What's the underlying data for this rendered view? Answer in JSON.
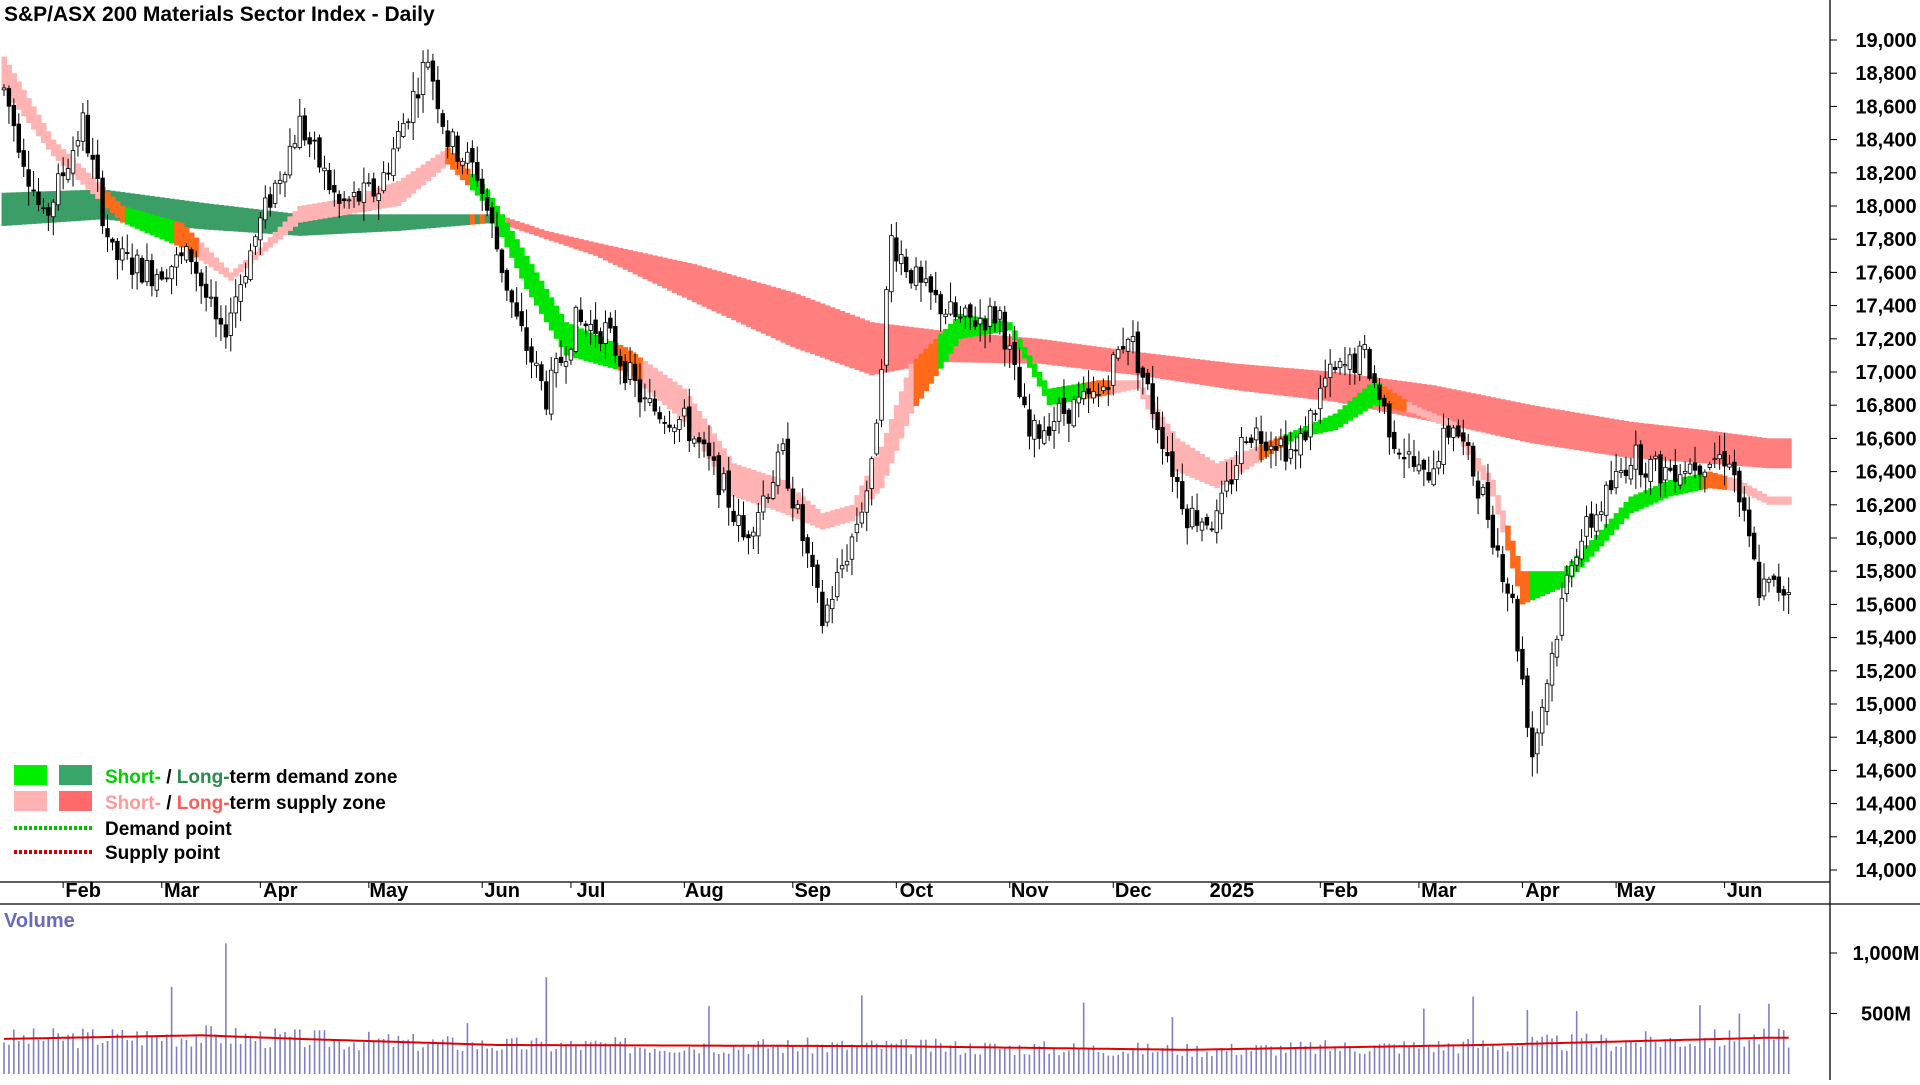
{
  "chart_data": {
    "type": "candlestick",
    "title": "S&P/ASX 200 Materials Sector Index - Daily",
    "y_axis": {
      "ylim": [
        13900,
        19250
      ],
      "ticks": [
        14000,
        14200,
        14400,
        14600,
        14800,
        15000,
        15200,
        15400,
        15600,
        15800,
        16000,
        16200,
        16400,
        16600,
        16800,
        17000,
        17200,
        17400,
        17600,
        17800,
        18000,
        18200,
        18400,
        18600,
        18800,
        19000
      ],
      "tick_labels": [
        "14,000",
        "14,200",
        "14,400",
        "14,600",
        "14,800",
        "15,000",
        "15,200",
        "15,400",
        "15,600",
        "15,800",
        "16,000",
        "16,200",
        "16,400",
        "16,600",
        "16,800",
        "17,000",
        "17,200",
        "17,400",
        "17,600",
        "17,800",
        "18,000",
        "18,200",
        "18,400",
        "18,600",
        "18,800",
        "19,000"
      ]
    },
    "x_axis": {
      "months": [
        "Feb",
        "Mar",
        "Apr",
        "May",
        "Jun",
        "Jul",
        "Aug",
        "Sep",
        "Oct",
        "Nov",
        "Dec",
        "2025",
        "Feb",
        "Mar",
        "Apr",
        "May",
        "Jun"
      ],
      "month_start_day": [
        12,
        32,
        52,
        74,
        97,
        115,
        138,
        160,
        181,
        204,
        225,
        245,
        267,
        287,
        308,
        327,
        349
      ]
    },
    "total_days": 363,
    "price_path": [
      [
        0,
        18700
      ],
      [
        8,
        17900
      ],
      [
        16,
        18500
      ],
      [
        22,
        17700
      ],
      [
        30,
        17600
      ],
      [
        38,
        17700
      ],
      [
        44,
        17200
      ],
      [
        52,
        17900
      ],
      [
        60,
        18500
      ],
      [
        68,
        18000
      ],
      [
        76,
        18100
      ],
      [
        86,
        18900
      ],
      [
        90,
        18400
      ],
      [
        96,
        18200
      ],
      [
        104,
        17300
      ],
      [
        110,
        16850
      ],
      [
        116,
        17300
      ],
      [
        122,
        17250
      ],
      [
        130,
        16800
      ],
      [
        138,
        16700
      ],
      [
        146,
        16300
      ],
      [
        150,
        16000
      ],
      [
        158,
        16500
      ],
      [
        166,
        15500
      ],
      [
        172,
        16000
      ],
      [
        176,
        16400
      ],
      [
        180,
        17800
      ],
      [
        186,
        17500
      ],
      [
        194,
        17300
      ],
      [
        202,
        17350
      ],
      [
        208,
        16600
      ],
      [
        214,
        16750
      ],
      [
        222,
        16850
      ],
      [
        228,
        17250
      ],
      [
        234,
        16700
      ],
      [
        240,
        16150
      ],
      [
        246,
        16100
      ],
      [
        252,
        16650
      ],
      [
        258,
        16600
      ],
      [
        262,
        16500
      ],
      [
        268,
        16950
      ],
      [
        276,
        17100
      ],
      [
        282,
        16600
      ],
      [
        288,
        16350
      ],
      [
        294,
        16700
      ],
      [
        300,
        16250
      ],
      [
        306,
        15600
      ],
      [
        310,
        14700
      ],
      [
        314,
        15300
      ],
      [
        318,
        15900
      ],
      [
        324,
        16200
      ],
      [
        330,
        16500
      ],
      [
        336,
        16400
      ],
      [
        342,
        16450
      ],
      [
        350,
        16500
      ],
      [
        353,
        16100
      ],
      [
        356,
        15700
      ],
      [
        358,
        15700
      ]
    ],
    "short_term_zone": {
      "upper": [
        [
          0,
          18900
        ],
        [
          10,
          18400
        ],
        [
          24,
          18000
        ],
        [
          36,
          17900
        ],
        [
          46,
          17600
        ],
        [
          52,
          17750
        ],
        [
          60,
          18000
        ],
        [
          70,
          18050
        ],
        [
          80,
          18150
        ],
        [
          90,
          18350
        ],
        [
          98,
          18100
        ],
        [
          106,
          17700
        ],
        [
          114,
          17300
        ],
        [
          126,
          17150
        ],
        [
          138,
          16900
        ],
        [
          148,
          16450
        ],
        [
          158,
          16350
        ],
        [
          166,
          16150
        ],
        [
          172,
          16200
        ],
        [
          178,
          16550
        ],
        [
          184,
          17050
        ],
        [
          194,
          17350
        ],
        [
          204,
          17300
        ],
        [
          212,
          16900
        ],
        [
          222,
          16950
        ],
        [
          230,
          16950
        ],
        [
          238,
          16600
        ],
        [
          246,
          16450
        ],
        [
          254,
          16550
        ],
        [
          262,
          16650
        ],
        [
          270,
          16750
        ],
        [
          278,
          16950
        ],
        [
          286,
          16800
        ],
        [
          294,
          16700
        ],
        [
          302,
          16350
        ],
        [
          308,
          15800
        ],
        [
          316,
          15800
        ],
        [
          324,
          16050
        ],
        [
          330,
          16250
        ],
        [
          338,
          16350
        ],
        [
          346,
          16400
        ],
        [
          352,
          16350
        ],
        [
          358,
          16250
        ]
      ],
      "lower": [
        [
          0,
          18700
        ],
        [
          10,
          18300
        ],
        [
          24,
          17900
        ],
        [
          36,
          17750
        ],
        [
          46,
          17550
        ],
        [
          52,
          17700
        ],
        [
          60,
          17900
        ],
        [
          70,
          17950
        ],
        [
          80,
          18000
        ],
        [
          90,
          18250
        ],
        [
          98,
          18000
        ],
        [
          106,
          17500
        ],
        [
          114,
          17100
        ],
        [
          126,
          17000
        ],
        [
          138,
          16700
        ],
        [
          148,
          16250
        ],
        [
          158,
          16150
        ],
        [
          166,
          16050
        ],
        [
          172,
          16100
        ],
        [
          178,
          16300
        ],
        [
          184,
          16750
        ],
        [
          194,
          17200
        ],
        [
          204,
          17250
        ],
        [
          212,
          16800
        ],
        [
          222,
          16850
        ],
        [
          230,
          16900
        ],
        [
          238,
          16400
        ],
        [
          246,
          16300
        ],
        [
          254,
          16450
        ],
        [
          262,
          16600
        ],
        [
          270,
          16650
        ],
        [
          278,
          16800
        ],
        [
          286,
          16750
        ],
        [
          294,
          16650
        ],
        [
          302,
          16250
        ],
        [
          308,
          15600
        ],
        [
          316,
          15700
        ],
        [
          324,
          15950
        ],
        [
          330,
          16150
        ],
        [
          338,
          16250
        ],
        [
          346,
          16300
        ],
        [
          352,
          16280
        ],
        [
          358,
          16200
        ]
      ],
      "state": [
        1,
        1,
        1,
        1,
        1,
        0,
        0,
        0,
        1,
        1,
        1,
        1,
        1,
        1,
        1,
        1,
        1,
        1,
        1,
        0,
        0,
        0,
        0,
        0,
        0,
        0,
        1,
        1,
        1,
        1,
        1,
        1,
        1,
        1,
        1,
        1,
        1,
        1,
        0,
        0,
        0,
        0,
        0,
        0,
        0,
        1,
        1,
        1,
        1,
        1,
        1,
        1,
        0,
        0,
        0,
        0,
        0,
        1,
        1,
        1,
        1,
        1,
        0,
        0,
        0,
        0,
        0,
        0,
        0,
        0,
        1,
        1,
        1
      ]
    },
    "long_term_zone": {
      "upper": [
        [
          0,
          18080
        ],
        [
          20,
          18100
        ],
        [
          40,
          18020
        ],
        [
          60,
          17950
        ],
        [
          80,
          17950
        ],
        [
          100,
          17950
        ],
        [
          110,
          17850
        ],
        [
          120,
          17780
        ],
        [
          140,
          17650
        ],
        [
          160,
          17480
        ],
        [
          176,
          17300
        ],
        [
          190,
          17250
        ],
        [
          210,
          17200
        ],
        [
          230,
          17120
        ],
        [
          250,
          17050
        ],
        [
          270,
          17000
        ],
        [
          290,
          16920
        ],
        [
          310,
          16800
        ],
        [
          330,
          16700
        ],
        [
          345,
          16650
        ],
        [
          358,
          16600
        ]
      ],
      "lower": [
        [
          0,
          17880
        ],
        [
          20,
          17920
        ],
        [
          40,
          17860
        ],
        [
          60,
          17820
        ],
        [
          80,
          17850
        ],
        [
          100,
          17900
        ],
        [
          110,
          17800
        ],
        [
          120,
          17700
        ],
        [
          140,
          17420
        ],
        [
          160,
          17150
        ],
        [
          176,
          16980
        ],
        [
          190,
          17060
        ],
        [
          210,
          17050
        ],
        [
          230,
          16980
        ],
        [
          250,
          16890
        ],
        [
          270,
          16820
        ],
        [
          290,
          16700
        ],
        [
          310,
          16570
        ],
        [
          330,
          16480
        ],
        [
          345,
          16450
        ],
        [
          358,
          16420
        ]
      ],
      "demand_until_day": 100
    },
    "volume": {
      "panel_label": "Volume",
      "ylim": [
        0,
        1250
      ],
      "ticks": [
        500,
        1000
      ],
      "tick_labels": [
        "500M",
        "1,000M"
      ],
      "base_level": 280,
      "spikes": [
        [
          34,
          720
        ],
        [
          45,
          1080
        ],
        [
          94,
          420
        ],
        [
          110,
          800
        ],
        [
          143,
          560
        ],
        [
          174,
          650
        ],
        [
          219,
          590
        ],
        [
          237,
          470
        ],
        [
          288,
          540
        ],
        [
          298,
          640
        ],
        [
          309,
          530
        ],
        [
          319,
          520
        ],
        [
          344,
          570
        ],
        [
          352,
          500
        ],
        [
          358,
          580
        ]
      ],
      "ma_path": [
        [
          0,
          290
        ],
        [
          40,
          320
        ],
        [
          60,
          290
        ],
        [
          100,
          240
        ],
        [
          180,
          230
        ],
        [
          240,
          200
        ],
        [
          300,
          240
        ],
        [
          358,
          300
        ]
      ]
    },
    "legend": {
      "placement": "bottom-left",
      "items": [
        {
          "parts": [
            {
              "text": "Short-",
              "color": "#00d000"
            },
            {
              "text": " / ",
              "color": "#000000"
            },
            {
              "text": "Long-",
              "color": "#2a8a4f"
            },
            {
              "text": "term demand zone",
              "color": "#000000"
            }
          ],
          "swatches": [
            "#00f000",
            "#3aa66a"
          ],
          "kind": "zone"
        },
        {
          "parts": [
            {
              "text": "Short-",
              "color": "#ff9a9a"
            },
            {
              "text": " / ",
              "color": "#000000"
            },
            {
              "text": "Long-",
              "color": "#ff5a5a"
            },
            {
              "text": "term supply zone",
              "color": "#000000"
            }
          ],
          "swatches": [
            "#ffb3b3",
            "#ff6b6b"
          ],
          "kind": "zone"
        },
        {
          "parts": [
            {
              "text": "Demand point",
              "color": "#000000"
            }
          ],
          "swatches": [
            "#00c000"
          ],
          "kind": "dots"
        },
        {
          "parts": [
            {
              "text": "Supply point",
              "color": "#000000"
            }
          ],
          "swatches": [
            "#d00000"
          ],
          "kind": "dots"
        }
      ]
    },
    "colors": {
      "short_demand": "#00e600",
      "short_supply": "#ffb3b3",
      "short_transition": "#ff6a1a",
      "long_demand": "#3a9e66",
      "long_supply": "#ff7f7f",
      "long_transition": "#ff6a1a",
      "volume_bar": "#7f7fc8",
      "volume_ma": "#e00000",
      "volume_label": "#6a6ab8"
    }
  }
}
